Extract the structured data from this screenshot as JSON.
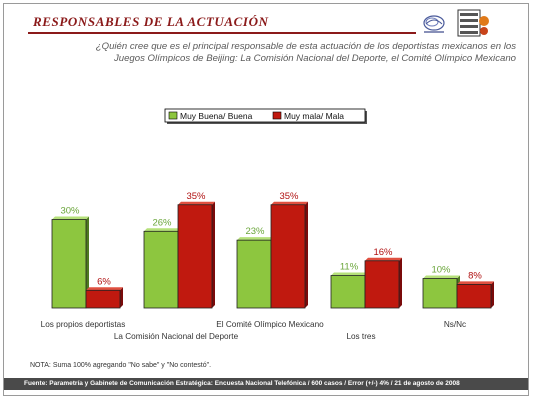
{
  "header": {
    "title": "RESPONSABLES DE LA ACTUACIÓN",
    "title_color": "#8b1a1a"
  },
  "question": {
    "line1": "¿Quién cree que es el principal responsable de esta actuación de los deportistas mexicanos en los",
    "line2": "Juegos Olímpicos de Beijing: La Comisión Nacional del Deporte, el Comité Olímpico Mexicano"
  },
  "logos": [
    {
      "name": "parametria-logo-icon"
    },
    {
      "name": "gabinete-comunicacion-logo-icon"
    }
  ],
  "chart_data": {
    "type": "bar",
    "categories": [
      "Los propios deportistas",
      "La Comisión Nacional del Deporte",
      "El Comité Olímpico Mexicano",
      "Los tres",
      "Ns/Nc"
    ],
    "series": [
      {
        "name": "Muy Buena/ Buena",
        "color": "#8dc63f",
        "values": [
          30,
          26,
          23,
          11,
          10
        ],
        "labels": [
          "30%",
          "26%",
          "23%",
          "11%",
          "10%"
        ],
        "label_color": "#6aa53a"
      },
      {
        "name": "Muy mala/ Mala",
        "color": "#c0190f",
        "values": [
          6,
          35,
          35,
          16,
          8
        ],
        "labels": [
          "6%",
          "35%",
          "35%",
          "16%",
          "8%"
        ],
        "label_color": "#b01010"
      }
    ],
    "ylim": [
      0,
      40
    ],
    "grid": false,
    "legend": "top-center"
  },
  "note": "NOTA: Suma 100% agregando \"No sabe\" y \"No contestó\".",
  "footer": "Fuente: Parametría y Gabinete de Comunicación Estratégica: Encuesta Nacional Telefónica / 600 casos / Error (+/-) 4% / 21 de agosto de 2008"
}
